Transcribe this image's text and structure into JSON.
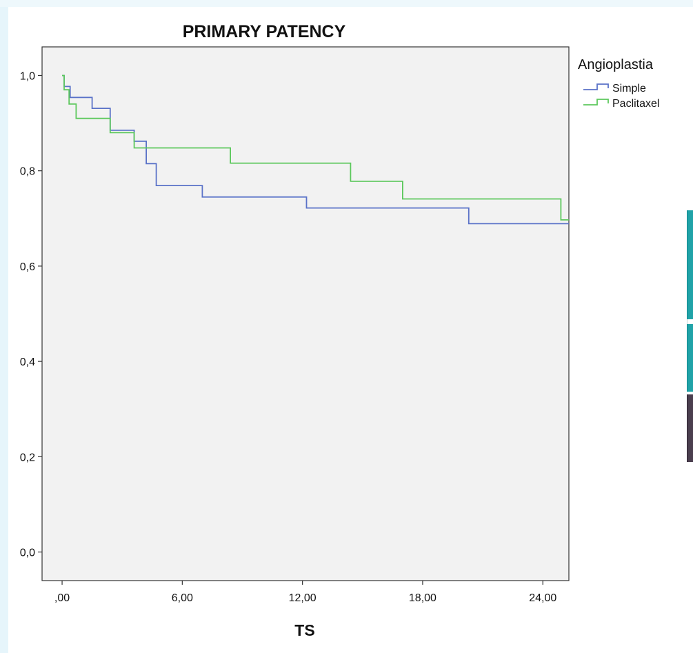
{
  "chart_data": {
    "type": "line",
    "title": "PRIMARY PATENCY",
    "xlabel": "TS",
    "ylabel": "",
    "xlim": [
      -1,
      25.3
    ],
    "ylim": [
      -0.06,
      1.06
    ],
    "x_ticks": [
      0,
      6,
      12,
      18,
      24
    ],
    "x_tick_labels": [
      ",00",
      "6,00",
      "12,00",
      "18,00",
      "24,00"
    ],
    "y_ticks": [
      0,
      0.2,
      0.4,
      0.6,
      0.8,
      1.0
    ],
    "y_tick_labels": [
      "0,0",
      "0,2",
      "0,4",
      "0,6",
      "0,8",
      "1,0"
    ],
    "grid": false,
    "legend_title": "Angioplastia",
    "legend_position": "right",
    "series": [
      {
        "name": "Simple",
        "color": "#5a72c8",
        "step": true,
        "x": [
          0.0,
          0.1,
          0.4,
          1.5,
          2.4,
          3.6,
          4.2,
          4.7,
          7.0,
          12.2,
          20.3,
          25.3
        ],
        "y": [
          1.0,
          0.977,
          0.954,
          0.931,
          0.885,
          0.862,
          0.815,
          0.769,
          0.745,
          0.722,
          0.689,
          0.689
        ]
      },
      {
        "name": "Paclitaxel",
        "color": "#5cc85c",
        "step": true,
        "x": [
          0.0,
          0.1,
          0.25,
          0.35,
          0.7,
          2.4,
          3.6,
          8.4,
          14.4,
          17.0,
          24.9,
          25.3
        ],
        "y": [
          1.0,
          0.97,
          0.97,
          0.94,
          0.91,
          0.88,
          0.848,
          0.816,
          0.778,
          0.741,
          0.697,
          0.697
        ]
      }
    ]
  },
  "colors": {
    "plot_background": "#f2f2f2",
    "axis": "#333333"
  }
}
